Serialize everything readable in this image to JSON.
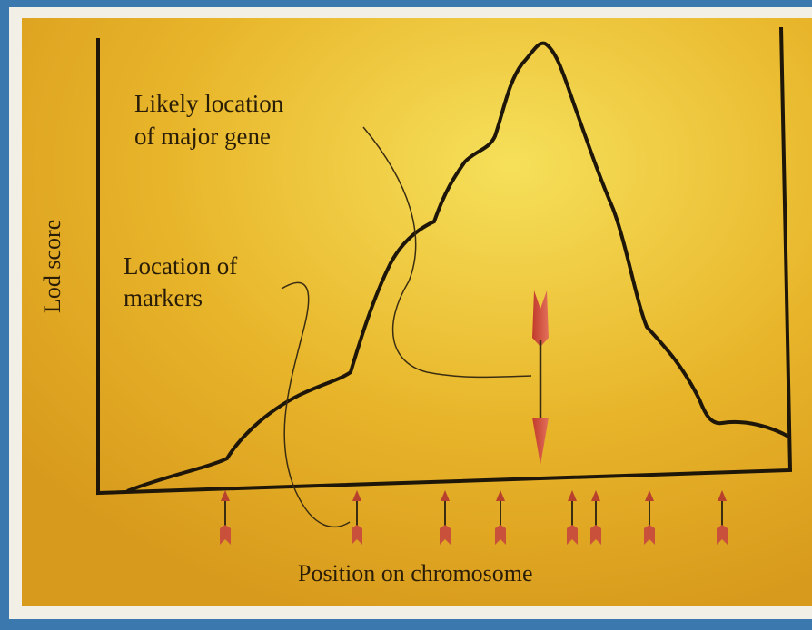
{
  "diagram": {
    "y_axis_label": "Lod score",
    "x_axis_label": "Position on chromosome",
    "annotations": [
      {
        "lines": [
          "Likely location",
          "of major gene"
        ]
      },
      {
        "lines": [
          "Location of",
          "markers"
        ]
      }
    ]
  }
}
